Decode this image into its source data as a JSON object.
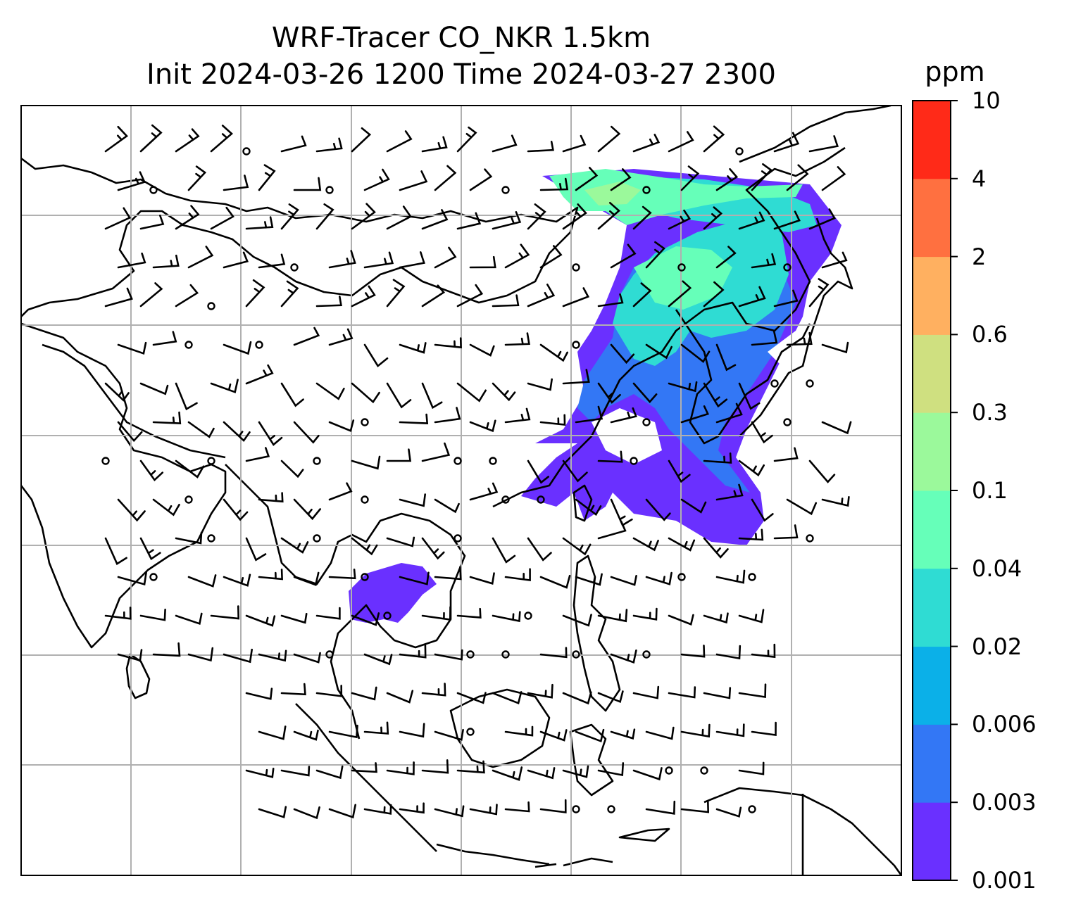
{
  "title": {
    "line1": "WRF-Tracer CO_NKR 1.5km",
    "line2": "Init 2024-03-26 1200 Time 2024-03-27 2300"
  },
  "colorbar": {
    "unit": "ppm",
    "levels": [
      "0.001",
      "0.003",
      "0.006",
      "0.02",
      "0.04",
      "0.1",
      "0.3",
      "0.6",
      "2",
      "4",
      "10"
    ],
    "colors": [
      "#6a30ff",
      "#3377f5",
      "#0bb0e8",
      "#2fdcd3",
      "#66ffb9",
      "#9bf99b",
      "#cfe080",
      "#ffb060",
      "#ff7040",
      "#ff2a18"
    ]
  },
  "map": {
    "frame_color": "#000000",
    "grid_color": "#b0b0b0",
    "coast_color": "#000000",
    "barb_color": "#000000",
    "gridlines": "on",
    "icons": [
      "wind-barb-icon",
      "calm-wind-circle-icon"
    ]
  }
}
